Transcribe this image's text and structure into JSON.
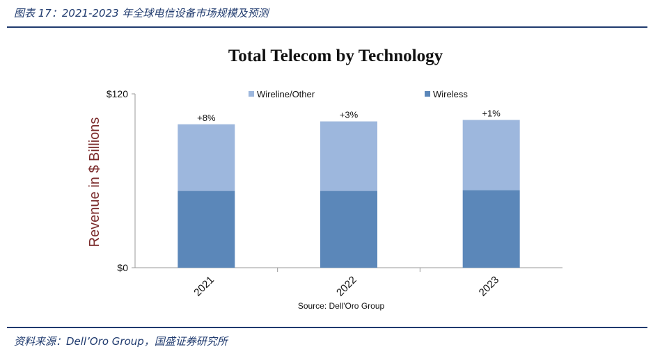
{
  "figure": {
    "caption": "图表 17：2021-2023 年全球电信设备市场规模及预测",
    "source": "资料来源：Dell’Oro Group，国盛证券研究所"
  },
  "chart_data": {
    "type": "bar",
    "stacked": true,
    "title": "Total Telecom by Technology",
    "ylabel": "Revenue in $ Billions",
    "xlabel": "",
    "categories": [
      "2021",
      "2022",
      "2023"
    ],
    "ylim": [
      0,
      120
    ],
    "yticks": [
      "$0",
      "$120"
    ],
    "series": [
      {
        "name": "Wireless",
        "color": "#5b87b9",
        "values": [
          53,
          53,
          53.5
        ]
      },
      {
        "name": "Wireline/Other",
        "color": "#9db7dd",
        "values": [
          46,
          48,
          48.5
        ]
      }
    ],
    "legend": [
      {
        "name": "Wireline/Other",
        "color": "#9db7dd"
      },
      {
        "name": "Wireless",
        "color": "#5b87b9"
      }
    ],
    "legend_position": "top",
    "annotations": [
      "+8%",
      "+3%",
      "+1%"
    ],
    "note": "Source: Dell'Oro Group",
    "grid": false
  }
}
